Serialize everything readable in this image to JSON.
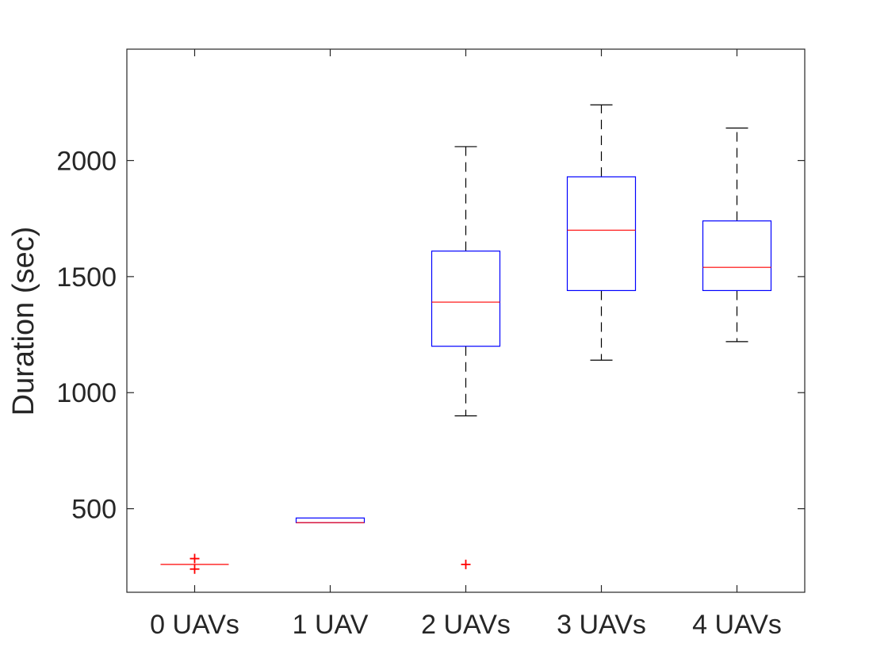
{
  "chart_data": {
    "type": "box",
    "title": "",
    "xlabel": "",
    "ylabel": "Duration (sec)",
    "ylim": [
      140,
      2480
    ],
    "yticks": [
      500,
      1000,
      1500,
      2000
    ],
    "grid": false,
    "categories": [
      "0 UAVs",
      "1 UAV",
      "2 UAVs",
      "3 UAVs",
      "4 UAVs"
    ],
    "boxes": [
      {
        "q1": 260,
        "median": 260,
        "q3": 260,
        "whisker_low": 260,
        "whisker_high": 260,
        "outliers": [
          285,
          240
        ]
      },
      {
        "q1": 440,
        "median": 440,
        "q3": 460,
        "whisker_low": 440,
        "whisker_high": 460,
        "outliers": []
      },
      {
        "q1": 1200,
        "median": 1390,
        "q3": 1610,
        "whisker_low": 900,
        "whisker_high": 2060,
        "outliers": [
          260
        ]
      },
      {
        "q1": 1440,
        "median": 1700,
        "q3": 1930,
        "whisker_low": 1140,
        "whisker_high": 2240,
        "outliers": []
      },
      {
        "q1": 1440,
        "median": 1540,
        "q3": 1740,
        "whisker_low": 1220,
        "whisker_high": 2140,
        "outliers": []
      }
    ],
    "colors": {
      "box": "#0000ff",
      "median": "#ff0000",
      "whisker": "#000000",
      "outlier": "#ff0000",
      "axis": "#262626"
    }
  }
}
